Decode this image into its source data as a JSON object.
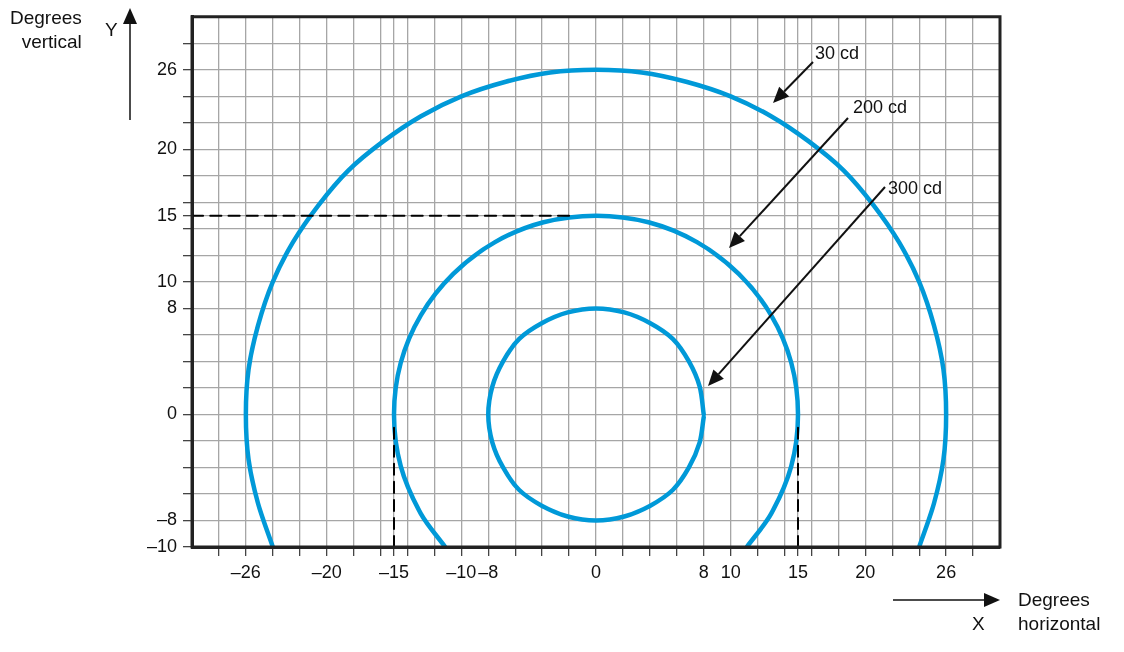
{
  "chart_data": {
    "type": "line",
    "xlabel": "Degrees horizontal",
    "ylabel": "Degrees vertical",
    "xlim": [
      -30,
      30
    ],
    "ylim": [
      -10,
      30
    ],
    "xticks": [
      {
        "value": -28,
        "label": null
      },
      {
        "value": -26,
        "label": "–26"
      },
      {
        "value": -24,
        "label": null
      },
      {
        "value": -22,
        "label": null
      },
      {
        "value": -20,
        "label": "–20"
      },
      {
        "value": -18,
        "label": null
      },
      {
        "value": -16,
        "label": null
      },
      {
        "value": -15,
        "label": "–15"
      },
      {
        "value": -14,
        "label": null
      },
      {
        "value": -12,
        "label": null
      },
      {
        "value": -10,
        "label": "–10"
      },
      {
        "value": -8,
        "label": "–8"
      },
      {
        "value": -6,
        "label": null
      },
      {
        "value": -4,
        "label": null
      },
      {
        "value": -2,
        "label": null
      },
      0,
      {
        "value": 2,
        "label": null
      },
      {
        "value": 4,
        "label": null
      },
      {
        "value": 6,
        "label": null
      },
      8,
      10,
      {
        "value": 12,
        "label": null
      },
      {
        "value": 14,
        "label": null
      },
      15,
      {
        "value": 16,
        "label": null
      },
      {
        "value": 18,
        "label": null
      },
      20,
      {
        "value": 22,
        "label": null
      },
      {
        "value": 24,
        "label": null
      },
      26,
      {
        "value": 28,
        "label": null
      }
    ],
    "yticks": [
      {
        "value": -10,
        "label": "–10"
      },
      {
        "value": -8,
        "label": "–8"
      },
      {
        "value": -6,
        "label": null
      },
      {
        "value": -4,
        "label": null
      },
      {
        "value": -2,
        "label": null
      },
      0,
      {
        "value": 2,
        "label": null
      },
      {
        "value": 4,
        "label": null
      },
      {
        "value": 6,
        "label": null
      },
      8,
      10,
      {
        "value": 12,
        "label": null
      },
      {
        "value": 14,
        "label": null
      },
      15,
      {
        "value": 16,
        "label": null
      },
      {
        "value": 18,
        "label": null
      },
      20,
      {
        "value": 22,
        "label": null
      },
      {
        "value": 24,
        "label": null
      },
      26,
      {
        "value": 28,
        "label": null
      }
    ],
    "grid": true,
    "legend": false,
    "marker": "none",
    "series": [
      {
        "color": "#000000",
        "line_style": "dashed",
        "x": [
          -30,
          -2
        ],
        "values": [
          15,
          15
        ]
      },
      {
        "color": "#000000",
        "line_style": "dashed",
        "x": [
          -15,
          -15
        ],
        "values": [
          -10,
          -1
        ]
      },
      {
        "color": "#000000",
        "line_style": "dashed",
        "x": [
          15,
          15
        ],
        "values": [
          -10,
          -1
        ]
      },
      {
        "color": "#0099d8",
        "x": [
          -24,
          -25.1,
          -25.8,
          -26,
          -25.8,
          -25.1,
          -24,
          -22.5,
          -20.6,
          -18.4,
          -15.8,
          -13,
          -10,
          -6.7,
          -3.4,
          0,
          3.4,
          6.7,
          10,
          13,
          15.8,
          18.4,
          20.6,
          22.5,
          24,
          25.1,
          25.8,
          26,
          25.8,
          25.1,
          24
        ],
        "values": [
          -10,
          -6.7,
          -3.4,
          0,
          3.4,
          6.7,
          10,
          13,
          15.8,
          18.4,
          20.6,
          22.5,
          24,
          25.1,
          25.8,
          26,
          25.8,
          25.1,
          24,
          22.5,
          20.6,
          18.4,
          15.8,
          13,
          10,
          6.7,
          3.4,
          0,
          -3.4,
          -6.7,
          -10
        ]
      },
      {
        "color": "#0099d8",
        "x": [
          -11.2,
          -13,
          -14.5,
          -15,
          -14.5,
          -13,
          -10.6,
          -7.5,
          -3.9,
          0,
          3.9,
          7.5,
          10.6,
          13,
          14.5,
          15,
          14.5,
          13,
          11.2
        ],
        "values": [
          -10,
          -7.5,
          -3.9,
          0,
          3.9,
          7.5,
          10.6,
          13,
          14.5,
          15,
          14.5,
          13,
          10.6,
          7.5,
          3.9,
          0,
          -3.9,
          -7.5,
          -10
        ]
      },
      {
        "color": "#0099d8",
        "x": [
          8,
          7.7,
          6.9,
          5.7,
          4,
          2.1,
          0,
          -2.1,
          -4,
          -5.7,
          -6.9,
          -7.7,
          -8,
          -7.7,
          -6.9,
          -5.7,
          -4,
          -2.1,
          0,
          2.1,
          4,
          5.7,
          6.9,
          7.7,
          8
        ],
        "values": [
          0,
          2.1,
          4,
          5.7,
          6.9,
          7.7,
          8,
          7.7,
          6.9,
          5.7,
          4,
          2.1,
          0,
          -2.1,
          -4,
          -5.7,
          -6.9,
          -7.7,
          -8,
          -7.7,
          -6.9,
          -5.7,
          -4,
          -2.1,
          -0.2
        ]
      }
    ],
    "annotations": [
      "30 cd",
      "200 cd",
      "300 cd",
      "Y",
      "X"
    ]
  }
}
